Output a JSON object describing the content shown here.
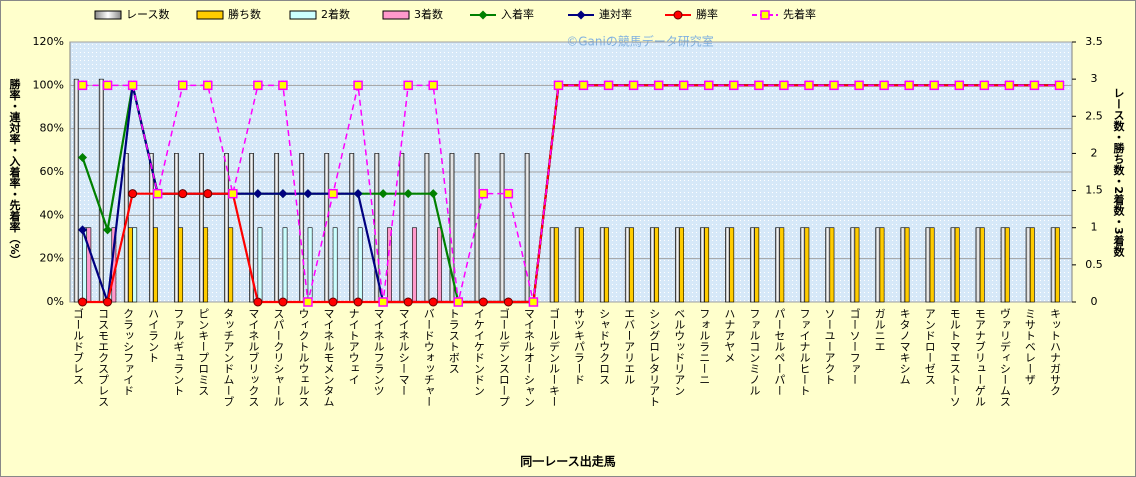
{
  "chart_data": {
    "type": "bar-line",
    "watermark": "©Ganiの競馬データ研究室",
    "y_label": "勝率・連対率・入着率・先着率（%）",
    "y2_label": "レース数・勝ち数・2着数・3着数",
    "x_label": "同一レース出走馬",
    "categories": [
      "ゴールドブレス",
      "コスモエクスプレス",
      "クラッシファイド",
      "ハイラント",
      "ファルギュラント",
      "ピンキープロミス",
      "タッチアンドムーブ",
      "マイネルブリックス",
      "スパークリシャール",
      "ウィクトルウェルス",
      "マイネルモメンタム",
      "ナイトアウェイ",
      "マイネルフランツ",
      "マイネルシーマー",
      "バードウォッチャー",
      "トラストボス",
      "イケイケドンドン",
      "ゴールデンスロープ",
      "マイネルオーシャン",
      "ゴールデンルーキー",
      "サツキパラード",
      "シャドウクロス",
      "エバーアリエル",
      "シングロレタリアト",
      "ベルウッドリアン",
      "フォルラニーニ",
      "ハナアヤメ",
      "ファルコンミノル",
      "パーセルペーパー",
      "ファイナルヒート",
      "ソーユーアクト",
      "ゴーソーファー",
      "ガルニエ",
      "キタノマキシム",
      "アンドローゼス",
      "モルトマエストーソ",
      "モアナブリューゲル",
      "ヴァリディシームス",
      "ミサトベレーザ",
      "キットハナガサク"
    ],
    "ylim": [
      0,
      120
    ],
    "yticks": [
      {
        "value": 0,
        "label": "0%"
      },
      {
        "value": 20,
        "label": "20%"
      },
      {
        "value": 40,
        "label": "40%"
      },
      {
        "value": 60,
        "label": "60%"
      },
      {
        "value": 80,
        "label": "80%"
      },
      {
        "value": 100,
        "label": "100%"
      },
      {
        "value": 120,
        "label": "120%"
      }
    ],
    "y2lim": [
      0,
      3.5
    ],
    "y2ticks": [
      0,
      0.5,
      1,
      1.5,
      2,
      2.5,
      3,
      3.5
    ],
    "grid": true,
    "series": [
      {
        "name": "レース数",
        "kind": "bar",
        "axis": "y2",
        "color": "#ffffff",
        "values": [
          3,
          3,
          2,
          2,
          2,
          2,
          2,
          2,
          2,
          2,
          2,
          2,
          2,
          2,
          2,
          2,
          2,
          2,
          2,
          1,
          1,
          1,
          1,
          1,
          1,
          1,
          1,
          1,
          1,
          1,
          1,
          1,
          1,
          1,
          1,
          1,
          1,
          1,
          1,
          1
        ]
      },
      {
        "name": "勝ち数",
        "kind": "bar",
        "axis": "y2",
        "color": "#ffcc00",
        "values": [
          0,
          0,
          1,
          1,
          1,
          1,
          1,
          0,
          0,
          0,
          0,
          0,
          0,
          0,
          0,
          0,
          0,
          0,
          0,
          1,
          1,
          1,
          1,
          1,
          1,
          1,
          1,
          1,
          1,
          1,
          1,
          1,
          1,
          1,
          1,
          1,
          1,
          1,
          1,
          1
        ]
      },
      {
        "name": "2着数",
        "kind": "bar",
        "axis": "y2",
        "color": "#ccffff",
        "values": [
          1,
          0,
          1,
          0,
          0,
          0,
          0,
          1,
          1,
          1,
          1,
          1,
          0,
          0,
          0,
          0,
          0,
          0,
          0,
          0,
          0,
          0,
          0,
          0,
          0,
          0,
          0,
          0,
          0,
          0,
          0,
          0,
          0,
          0,
          0,
          0,
          0,
          0,
          0,
          0
        ]
      },
      {
        "name": "3着数",
        "kind": "bar",
        "axis": "y2",
        "color": "#ff99cc",
        "values": [
          1,
          1,
          0,
          0,
          0,
          0,
          0,
          0,
          0,
          0,
          0,
          0,
          1,
          1,
          1,
          0,
          0,
          0,
          0,
          0,
          0,
          0,
          0,
          0,
          0,
          0,
          0,
          0,
          0,
          0,
          0,
          0,
          0,
          0,
          0,
          0,
          0,
          0,
          0,
          0
        ]
      },
      {
        "name": "入着率",
        "kind": "line",
        "color": "#008000",
        "marker": "diamond",
        "values": [
          66.7,
          33.3,
          100,
          50,
          50,
          50,
          50,
          50,
          50,
          50,
          50,
          50,
          50,
          50,
          50,
          0,
          0,
          0,
          0,
          100,
          100,
          100,
          100,
          100,
          100,
          100,
          100,
          100,
          100,
          100,
          100,
          100,
          100,
          100,
          100,
          100,
          100,
          100,
          100,
          100
        ]
      },
      {
        "name": "連対率",
        "kind": "line",
        "color": "#000080",
        "marker": "diamond",
        "values": [
          33.3,
          0,
          100,
          50,
          50,
          50,
          50,
          50,
          50,
          50,
          50,
          50,
          0,
          0,
          0,
          0,
          0,
          0,
          0,
          100,
          100,
          100,
          100,
          100,
          100,
          100,
          100,
          100,
          100,
          100,
          100,
          100,
          100,
          100,
          100,
          100,
          100,
          100,
          100,
          100
        ]
      },
      {
        "name": "勝率",
        "kind": "line",
        "color": "#ff0000",
        "marker": "circle",
        "values": [
          0,
          0,
          50,
          50,
          50,
          50,
          50,
          0,
          0,
          0,
          0,
          0,
          0,
          0,
          0,
          0,
          0,
          0,
          0,
          100,
          100,
          100,
          100,
          100,
          100,
          100,
          100,
          100,
          100,
          100,
          100,
          100,
          100,
          100,
          100,
          100,
          100,
          100,
          100,
          100
        ]
      },
      {
        "name": "先着率",
        "kind": "line",
        "color": "#ff00ff",
        "marker": "square",
        "marker_fill": "#ffff00",
        "dash": true,
        "values": [
          100,
          100,
          100,
          50,
          100,
          100,
          50,
          100,
          100,
          0,
          50,
          100,
          0,
          100,
          100,
          0,
          50,
          50,
          0,
          100,
          100,
          100,
          100,
          100,
          100,
          100,
          100,
          100,
          100,
          100,
          100,
          100,
          100,
          100,
          100,
          100,
          100,
          100,
          100,
          100
        ]
      }
    ]
  }
}
